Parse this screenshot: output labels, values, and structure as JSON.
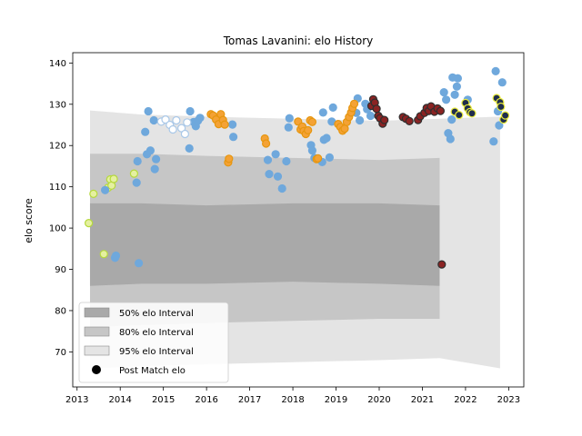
{
  "chart_data": {
    "type": "scatter",
    "title": "Tomas Lavanini: elo History",
    "xlabel": "",
    "ylabel": "elo score",
    "xlim": [
      2012.9,
      2023.35
    ],
    "ylim": [
      61.5,
      142.5
    ],
    "x_ticks": [
      2013,
      2014,
      2015,
      2016,
      2017,
      2018,
      2019,
      2020,
      2021,
      2022,
      2023
    ],
    "y_ticks": [
      70,
      80,
      90,
      100,
      110,
      120,
      130,
      140
    ],
    "grid": false,
    "legend_position": "lower-left",
    "legend": [
      {
        "label": "50% elo Interval",
        "color": "#a9a9a9"
      },
      {
        "label": "80% elo Interval",
        "color": "#c6c6c6"
      },
      {
        "label": "95% elo Interval",
        "color": "#e4e4e4"
      },
      {
        "label": "Post Match elo",
        "color": "#000000"
      }
    ],
    "marker_styles": {
      "lightgreen": {
        "fill": "#e5f0a0",
        "stroke": "#b5d93d"
      },
      "blue": {
        "fill": "#6fa8dc",
        "stroke": "#6fa8dc"
      },
      "white": {
        "fill": "#ffffff",
        "stroke": "#a9c8e8"
      },
      "orange": {
        "fill": "#f4a235",
        "stroke": "#e6960f"
      },
      "darkred": {
        "fill": "#8b2323",
        "stroke": "#2f2f2f"
      },
      "navy": {
        "fill": "#1f2d4d",
        "stroke": "#e8ea3a"
      }
    },
    "intervals": [
      {
        "name": "95% elo Interval",
        "color": "#e4e4e4",
        "upper": [
          [
            2013.3,
            128.5
          ],
          [
            2014.5,
            127.5
          ],
          [
            2016,
            127
          ],
          [
            2018,
            126.5
          ],
          [
            2020,
            126
          ],
          [
            2021.4,
            126.5
          ],
          [
            2022.8,
            127
          ]
        ],
        "lower": [
          [
            2013.3,
            66
          ],
          [
            2014.5,
            66.5
          ],
          [
            2016,
            67
          ],
          [
            2018,
            67.5
          ],
          [
            2020,
            68
          ],
          [
            2021.4,
            68.5
          ],
          [
            2022.8,
            66
          ]
        ]
      },
      {
        "name": "80% elo Interval",
        "color": "#c6c6c6",
        "upper": [
          [
            2013.3,
            118
          ],
          [
            2014.5,
            118
          ],
          [
            2016,
            117.5
          ],
          [
            2018,
            117
          ],
          [
            2020,
            116.5
          ],
          [
            2021.4,
            117
          ]
        ],
        "lower": [
          [
            2013.3,
            76
          ],
          [
            2014.5,
            76.5
          ],
          [
            2016,
            77
          ],
          [
            2018,
            77.5
          ],
          [
            2020,
            78
          ],
          [
            2021.4,
            78
          ]
        ]
      },
      {
        "name": "50% elo Interval",
        "color": "#a9a9a9",
        "upper": [
          [
            2013.3,
            106
          ],
          [
            2014.5,
            106
          ],
          [
            2016,
            105.5
          ],
          [
            2018,
            106
          ],
          [
            2020,
            106
          ],
          [
            2021.4,
            105.5
          ]
        ],
        "lower": [
          [
            2013.3,
            86
          ],
          [
            2014.5,
            86.5
          ],
          [
            2016,
            86.5
          ],
          [
            2018,
            87
          ],
          [
            2020,
            86.5
          ],
          [
            2021.4,
            86
          ]
        ]
      }
    ],
    "series": [
      {
        "name": "Post Match elo",
        "style": "lightgreen",
        "points": [
          [
            2013.27,
            101.2
          ],
          [
            2013.38,
            108.3
          ],
          [
            2013.62,
            93.7
          ],
          [
            2013.72,
            109.8
          ],
          [
            2013.77,
            111.8
          ],
          [
            2013.8,
            110.3
          ],
          [
            2013.85,
            111.9
          ],
          [
            2014.32,
            113.2
          ]
        ]
      },
      {
        "name": "",
        "style": "blue",
        "points": [
          [
            2013.65,
            109.2
          ],
          [
            2013.88,
            92.8
          ],
          [
            2013.9,
            93.3
          ],
          [
            2014.38,
            111.0
          ],
          [
            2014.4,
            116.2
          ],
          [
            2014.43,
            91.5
          ],
          [
            2014.58,
            123.3
          ],
          [
            2014.62,
            117.9
          ],
          [
            2014.65,
            128.3
          ],
          [
            2014.7,
            118.8
          ],
          [
            2014.78,
            126.1
          ],
          [
            2014.8,
            114.3
          ],
          [
            2014.83,
            116.7
          ],
          [
            2015.6,
            119.3
          ],
          [
            2015.62,
            128.3
          ],
          [
            2015.7,
            125.7
          ],
          [
            2015.75,
            124.7
          ],
          [
            2015.8,
            126.0
          ],
          [
            2015.85,
            126.7
          ],
          [
            2016.6,
            125.1
          ],
          [
            2016.62,
            122.1
          ],
          [
            2017.42,
            116.5
          ],
          [
            2017.45,
            113.1
          ],
          [
            2017.6,
            117.9
          ],
          [
            2017.65,
            112.5
          ],
          [
            2017.75,
            109.6
          ],
          [
            2017.85,
            116.2
          ],
          [
            2017.9,
            124.4
          ],
          [
            2017.92,
            126.6
          ],
          [
            2018.42,
            120.1
          ],
          [
            2018.45,
            118.8
          ],
          [
            2018.5,
            117.0
          ],
          [
            2018.68,
            116.0
          ],
          [
            2018.7,
            128.0
          ],
          [
            2018.72,
            121.4
          ],
          [
            2018.78,
            121.8
          ],
          [
            2018.85,
            117.1
          ],
          [
            2018.9,
            125.8
          ],
          [
            2018.93,
            129.2
          ],
          [
            2019.47,
            127.9
          ],
          [
            2019.5,
            131.4
          ],
          [
            2019.55,
            126.1
          ],
          [
            2019.68,
            130.1
          ],
          [
            2019.72,
            128.8
          ],
          [
            2019.8,
            127.2
          ],
          [
            2020.1,
            125.9
          ],
          [
            2021.5,
            132.9
          ],
          [
            2021.55,
            131.1
          ],
          [
            2021.6,
            123.0
          ],
          [
            2021.65,
            121.6
          ],
          [
            2021.68,
            126.3
          ],
          [
            2021.7,
            136.5
          ],
          [
            2021.75,
            132.3
          ],
          [
            2021.8,
            134.3
          ],
          [
            2021.82,
            136.3
          ],
          [
            2022.05,
            131.1
          ],
          [
            2022.65,
            121.0
          ],
          [
            2022.7,
            138.0
          ],
          [
            2022.75,
            128.3
          ],
          [
            2022.78,
            124.9
          ],
          [
            2022.85,
            135.3
          ]
        ]
      },
      {
        "name": "",
        "style": "white",
        "points": [
          [
            2014.95,
            125.8
          ],
          [
            2015.05,
            126.3
          ],
          [
            2015.15,
            125.0
          ],
          [
            2015.22,
            123.9
          ],
          [
            2015.3,
            126.1
          ],
          [
            2015.42,
            124.2
          ],
          [
            2015.5,
            122.8
          ],
          [
            2015.55,
            125.6
          ]
        ]
      },
      {
        "name": "",
        "style": "orange",
        "points": [
          [
            2016.1,
            127.6
          ],
          [
            2016.15,
            127.3
          ],
          [
            2016.22,
            126.3
          ],
          [
            2016.28,
            125.2
          ],
          [
            2016.33,
            127.6
          ],
          [
            2016.38,
            126.2
          ],
          [
            2016.42,
            125.1
          ],
          [
            2016.5,
            115.9
          ],
          [
            2016.52,
            116.8
          ],
          [
            2017.35,
            121.7
          ],
          [
            2017.38,
            120.5
          ],
          [
            2018.12,
            125.8
          ],
          [
            2018.18,
            123.9
          ],
          [
            2018.22,
            124.6
          ],
          [
            2018.25,
            123.5
          ],
          [
            2018.3,
            122.8
          ],
          [
            2018.35,
            123.7
          ],
          [
            2018.4,
            126.1
          ],
          [
            2018.45,
            125.7
          ],
          [
            2018.55,
            116.7
          ],
          [
            2018.58,
            116.9
          ],
          [
            2019.05,
            125.2
          ],
          [
            2019.1,
            124.5
          ],
          [
            2019.15,
            123.6
          ],
          [
            2019.2,
            124.1
          ],
          [
            2019.25,
            125.7
          ],
          [
            2019.3,
            126.9
          ],
          [
            2019.35,
            128.0
          ],
          [
            2019.38,
            129.1
          ],
          [
            2019.42,
            130.1
          ]
        ]
      },
      {
        "name": "",
        "style": "darkred",
        "points": [
          [
            2019.82,
            129.6
          ],
          [
            2019.86,
            131.2
          ],
          [
            2019.9,
            130.4
          ],
          [
            2019.94,
            128.9
          ],
          [
            2019.98,
            127.2
          ],
          [
            2020.02,
            126.6
          ],
          [
            2020.08,
            125.3
          ],
          [
            2020.12,
            126.2
          ],
          [
            2020.55,
            126.9
          ],
          [
            2020.62,
            126.5
          ],
          [
            2020.7,
            125.9
          ],
          [
            2020.9,
            126.2
          ],
          [
            2020.95,
            127.1
          ],
          [
            2021.05,
            127.9
          ],
          [
            2021.1,
            129.1
          ],
          [
            2021.15,
            128.4
          ],
          [
            2021.2,
            129.5
          ],
          [
            2021.28,
            128.2
          ],
          [
            2021.35,
            129.0
          ],
          [
            2021.42,
            128.4
          ],
          [
            2021.45,
            91.2
          ]
        ]
      },
      {
        "name": "",
        "style": "navy",
        "points": [
          [
            2021.75,
            128.2
          ],
          [
            2021.85,
            127.4
          ],
          [
            2022.0,
            130.3
          ],
          [
            2022.05,
            129.0
          ],
          [
            2022.1,
            128.1
          ],
          [
            2022.15,
            127.8
          ],
          [
            2022.72,
            131.5
          ],
          [
            2022.8,
            130.5
          ],
          [
            2022.82,
            129.4
          ],
          [
            2022.88,
            126.3
          ],
          [
            2022.92,
            127.3
          ]
        ]
      }
    ]
  }
}
